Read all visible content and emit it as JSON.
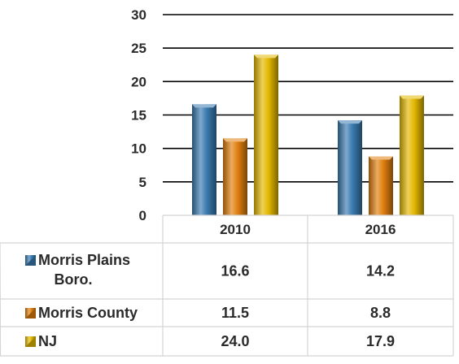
{
  "chart_data": {
    "type": "bar",
    "categories": [
      "2010",
      "2016"
    ],
    "series": [
      {
        "name": "Morris Plains Boro.",
        "values": [
          16.6,
          14.2
        ],
        "labels": [
          "16.6",
          "14.2"
        ],
        "color": "#3a7bb0"
      },
      {
        "name": "Morris County",
        "values": [
          11.5,
          8.8
        ],
        "labels": [
          "11.5",
          "8.8"
        ],
        "color": "#e07f0e"
      },
      {
        "name": "NJ",
        "values": [
          24.0,
          17.9
        ],
        "labels": [
          "24.0",
          "17.9"
        ],
        "color": "#e3b800"
      }
    ],
    "y_ticks": [
      "0",
      "5",
      "10",
      "15",
      "20",
      "25",
      "30"
    ],
    "ylim": [
      0,
      30
    ],
    "grid": true,
    "data_table": true
  }
}
